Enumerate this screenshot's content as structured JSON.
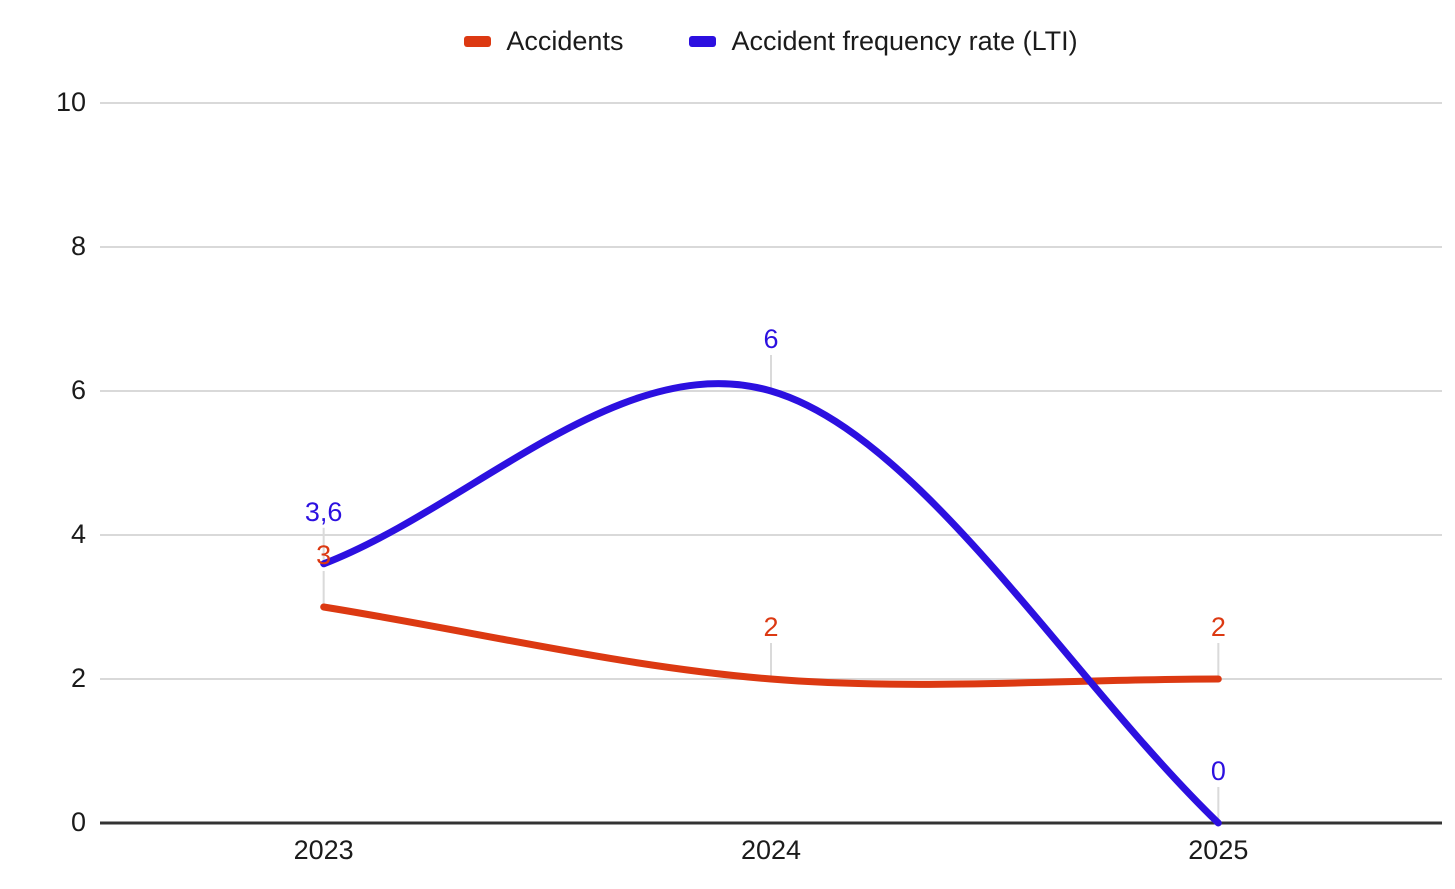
{
  "chart_data": {
    "type": "line",
    "smooth": true,
    "title": "",
    "xlabel": "",
    "ylabel": "",
    "categories": [
      "2023",
      "2024",
      "2025"
    ],
    "series": [
      {
        "name": "Accidents",
        "color": "#dc3912",
        "values": [
          3,
          2,
          2
        ],
        "point_labels": [
          "3",
          "2",
          "2"
        ]
      },
      {
        "name": "Accident frequency rate (LTI)",
        "color": "#2c10e0",
        "values": [
          3.6,
          6,
          0
        ],
        "point_labels": [
          "3,6",
          "6",
          "0"
        ]
      }
    ],
    "ylim": [
      0,
      10
    ],
    "yticks": [
      0,
      2,
      4,
      6,
      8,
      10
    ],
    "legend_position": "top",
    "grid": true,
    "gridline_color": "#d9d9d9",
    "axis_color": "#333333",
    "leader_line_color": "#dadada",
    "tick_label_color": "#1b1b1b"
  }
}
